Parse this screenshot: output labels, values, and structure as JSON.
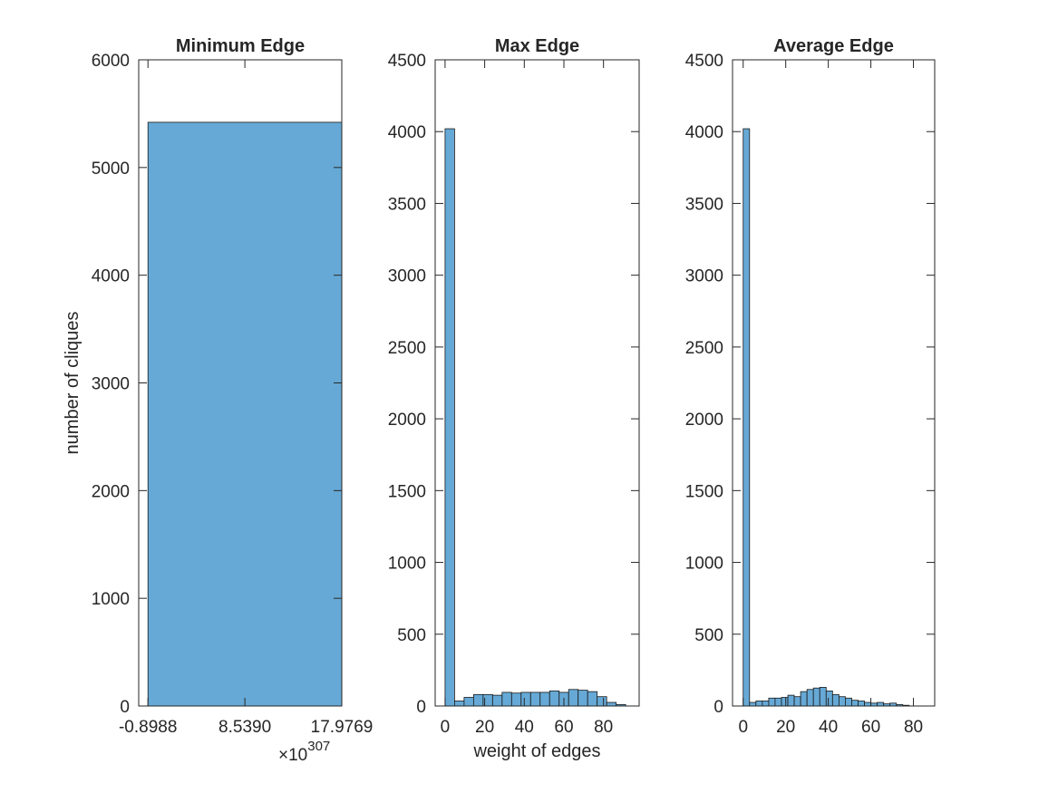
{
  "chart_data": [
    {
      "type": "bar",
      "title": "Minimum Edge",
      "xlabel": "",
      "ylabel": "number of cliques",
      "x_tick_labels": [
        "-0.8988",
        "8.5390",
        "17.9769"
      ],
      "x_exponent": {
        "base": "×10",
        "power": "307"
      },
      "yticks": [
        0,
        1000,
        2000,
        3000,
        4000,
        5000,
        6000
      ],
      "ylim": [
        0,
        6000
      ],
      "xlim": [
        -1.8,
        17.9769
      ],
      "bins": [
        {
          "x0": -0.8988,
          "x1": 17.9769,
          "value": 5420
        }
      ],
      "color": "#66a9d6"
    },
    {
      "type": "bar",
      "title": "Max Edge",
      "xlabel": "weight of edges",
      "ylabel": "",
      "xticks": [
        0,
        20,
        40,
        60,
        80
      ],
      "xlim": [
        -5,
        98
      ],
      "yticks": [
        0,
        500,
        1000,
        1500,
        2000,
        2500,
        3000,
        3500,
        4000,
        4500
      ],
      "ylim": [
        0,
        4500
      ],
      "bin_start": 0,
      "bin_width": 4.8,
      "values": [
        4020,
        35,
        60,
        80,
        80,
        75,
        95,
        90,
        95,
        95,
        95,
        105,
        95,
        115,
        110,
        100,
        65,
        25,
        10
      ],
      "color": "#66a9d6"
    },
    {
      "type": "bar",
      "title": "Average Edge",
      "xlabel": "",
      "ylabel": "",
      "xticks": [
        0,
        20,
        40,
        60,
        80
      ],
      "xlim": [
        -5,
        90
      ],
      "yticks": [
        0,
        500,
        1000,
        1500,
        2000,
        2500,
        3000,
        3500,
        4000,
        4500
      ],
      "ylim": [
        0,
        4500
      ],
      "bin_start": 0,
      "bin_width": 3,
      "values": [
        4020,
        25,
        35,
        35,
        55,
        55,
        60,
        75,
        65,
        100,
        115,
        125,
        130,
        105,
        80,
        65,
        55,
        40,
        35,
        25,
        20,
        25,
        15,
        20,
        10,
        5
      ],
      "color": "#66a9d6"
    }
  ]
}
